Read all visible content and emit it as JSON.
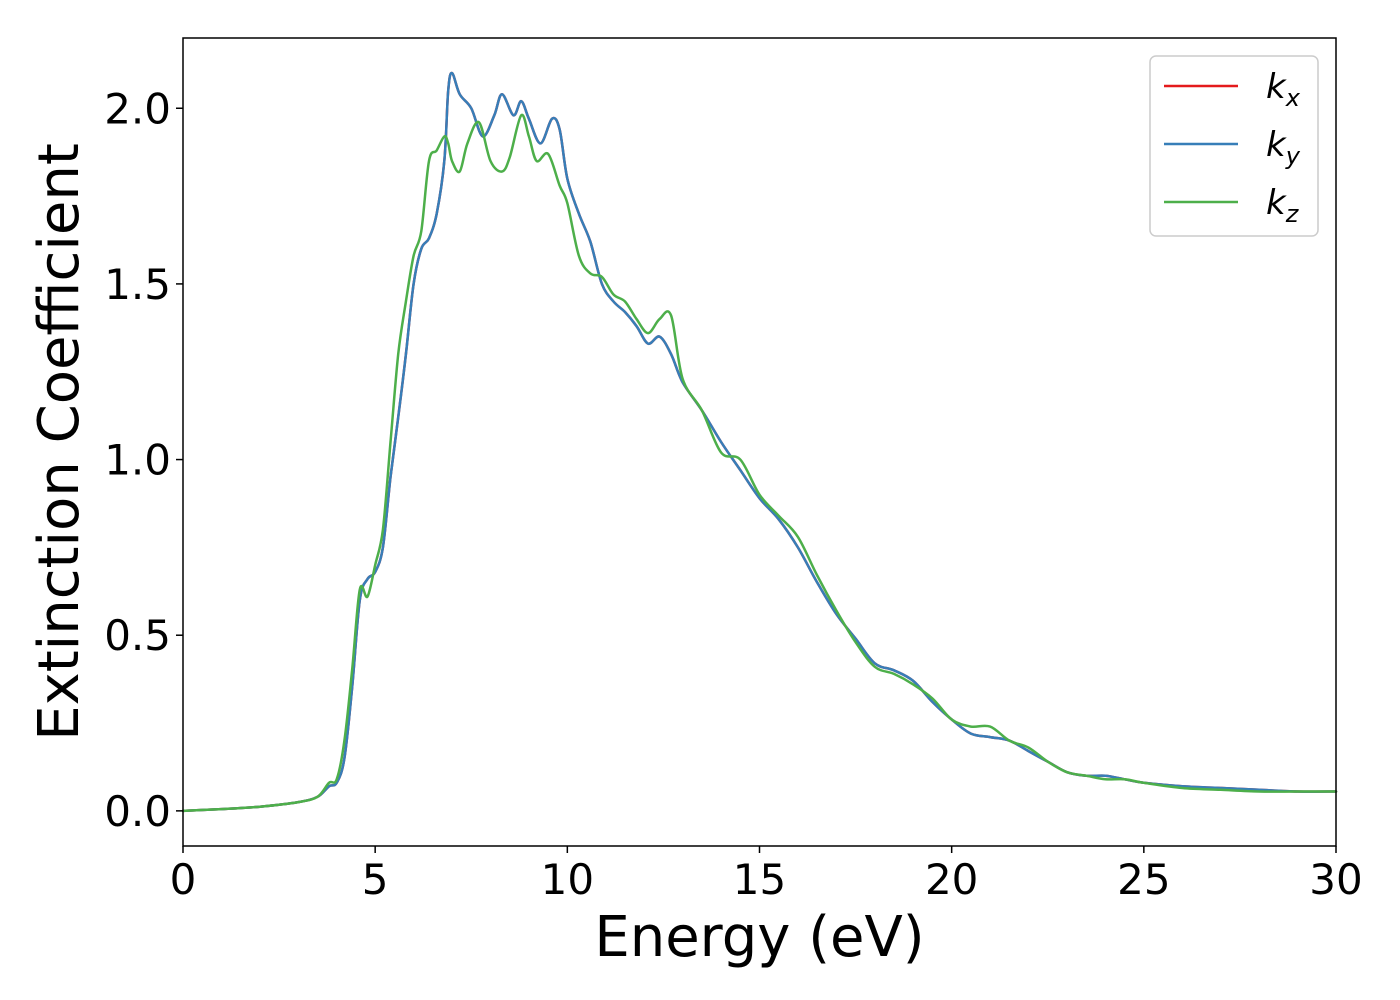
{
  "chart_data": {
    "type": "line",
    "title": "",
    "xlabel": "Energy (eV)",
    "ylabel": "Extinction Coefficient",
    "xlim": [
      0,
      30
    ],
    "ylim": [
      -0.1,
      2.2
    ],
    "xticks": [
      0,
      5,
      10,
      15,
      20,
      25,
      30
    ],
    "xtick_labels": [
      "0",
      "5",
      "10",
      "15",
      "20",
      "25",
      "30"
    ],
    "yticks": [
      0.0,
      0.5,
      1.0,
      1.5,
      2.0
    ],
    "ytick_labels": [
      "0.0",
      "0.5",
      "1.0",
      "1.5",
      "2.0"
    ],
    "grid": false,
    "legend_position": "top-right",
    "series": [
      {
        "name": "k",
        "subscript": "x",
        "color": "#e41a1c",
        "x": [
          0,
          1,
          2,
          3,
          3.5,
          3.8,
          4.0,
          4.2,
          4.4,
          4.6,
          4.8,
          5.0,
          5.2,
          5.4,
          5.6,
          5.8,
          6.0,
          6.2,
          6.4,
          6.6,
          6.8,
          6.9,
          7.0,
          7.2,
          7.5,
          7.8,
          8.1,
          8.3,
          8.6,
          8.8,
          9.0,
          9.3,
          9.6,
          9.8,
          10.0,
          10.3,
          10.6,
          10.9,
          11.2,
          11.5,
          11.8,
          12.1,
          12.4,
          12.7,
          13.0,
          13.5,
          14.0,
          14.5,
          15.0,
          15.5,
          16.0,
          16.5,
          17.0,
          17.5,
          18.0,
          18.5,
          19.0,
          19.5,
          20.0,
          20.5,
          21.0,
          21.5,
          22.0,
          22.5,
          23.0,
          23.5,
          24.0,
          24.5,
          25.0,
          26.0,
          27.0,
          28.0,
          29.0,
          30.0
        ],
        "y": [
          0.0,
          0.005,
          0.012,
          0.025,
          0.04,
          0.07,
          0.08,
          0.15,
          0.35,
          0.6,
          0.66,
          0.68,
          0.75,
          0.95,
          1.12,
          1.3,
          1.5,
          1.6,
          1.63,
          1.7,
          1.85,
          2.05,
          2.1,
          2.04,
          2.0,
          1.92,
          1.98,
          2.04,
          1.98,
          2.02,
          1.97,
          1.9,
          1.97,
          1.94,
          1.8,
          1.7,
          1.62,
          1.5,
          1.45,
          1.42,
          1.38,
          1.33,
          1.35,
          1.3,
          1.22,
          1.14,
          1.05,
          0.97,
          0.89,
          0.83,
          0.75,
          0.65,
          0.56,
          0.49,
          0.42,
          0.4,
          0.37,
          0.31,
          0.26,
          0.22,
          0.21,
          0.2,
          0.17,
          0.14,
          0.11,
          0.1,
          0.1,
          0.09,
          0.08,
          0.07,
          0.065,
          0.06,
          0.055,
          0.055
        ]
      },
      {
        "name": "k",
        "subscript": "y",
        "color": "#377eb8",
        "x": [
          0,
          1,
          2,
          3,
          3.5,
          3.8,
          4.0,
          4.2,
          4.4,
          4.6,
          4.8,
          5.0,
          5.2,
          5.4,
          5.6,
          5.8,
          6.0,
          6.2,
          6.4,
          6.6,
          6.8,
          6.9,
          7.0,
          7.2,
          7.5,
          7.8,
          8.1,
          8.3,
          8.6,
          8.8,
          9.0,
          9.3,
          9.6,
          9.8,
          10.0,
          10.3,
          10.6,
          10.9,
          11.2,
          11.5,
          11.8,
          12.1,
          12.4,
          12.7,
          13.0,
          13.5,
          14.0,
          14.5,
          15.0,
          15.5,
          16.0,
          16.5,
          17.0,
          17.5,
          18.0,
          18.5,
          19.0,
          19.5,
          20.0,
          20.5,
          21.0,
          21.5,
          22.0,
          22.5,
          23.0,
          23.5,
          24.0,
          24.5,
          25.0,
          26.0,
          27.0,
          28.0,
          29.0,
          30.0
        ],
        "y": [
          0.0,
          0.005,
          0.012,
          0.025,
          0.04,
          0.07,
          0.08,
          0.15,
          0.35,
          0.6,
          0.66,
          0.68,
          0.75,
          0.95,
          1.12,
          1.3,
          1.5,
          1.6,
          1.63,
          1.7,
          1.85,
          2.05,
          2.1,
          2.04,
          2.0,
          1.92,
          1.98,
          2.04,
          1.98,
          2.02,
          1.97,
          1.9,
          1.97,
          1.94,
          1.8,
          1.7,
          1.62,
          1.5,
          1.45,
          1.42,
          1.38,
          1.33,
          1.35,
          1.3,
          1.22,
          1.14,
          1.05,
          0.97,
          0.89,
          0.83,
          0.75,
          0.65,
          0.56,
          0.49,
          0.42,
          0.4,
          0.37,
          0.31,
          0.26,
          0.22,
          0.21,
          0.2,
          0.17,
          0.14,
          0.11,
          0.1,
          0.1,
          0.09,
          0.08,
          0.07,
          0.065,
          0.06,
          0.055,
          0.055
        ]
      },
      {
        "name": "k",
        "subscript": "z",
        "color": "#4daf4a",
        "x": [
          0,
          1,
          2,
          3,
          3.5,
          3.8,
          4.0,
          4.2,
          4.4,
          4.6,
          4.8,
          5.0,
          5.2,
          5.4,
          5.6,
          5.8,
          6.0,
          6.2,
          6.4,
          6.6,
          6.8,
          6.9,
          7.0,
          7.2,
          7.4,
          7.7,
          8.0,
          8.3,
          8.5,
          8.8,
          9.0,
          9.2,
          9.5,
          9.8,
          10.0,
          10.3,
          10.6,
          10.9,
          11.2,
          11.5,
          11.8,
          12.1,
          12.4,
          12.7,
          13.0,
          13.5,
          14.0,
          14.5,
          15.0,
          15.5,
          16.0,
          16.5,
          17.0,
          17.5,
          18.0,
          18.5,
          19.0,
          19.5,
          20.0,
          20.5,
          21.0,
          21.5,
          22.0,
          22.5,
          23.0,
          23.5,
          24.0,
          24.5,
          25.0,
          26.0,
          27.0,
          28.0,
          29.0,
          30.0
        ],
        "y": [
          0.0,
          0.005,
          0.012,
          0.025,
          0.04,
          0.08,
          0.09,
          0.2,
          0.4,
          0.63,
          0.61,
          0.7,
          0.8,
          1.05,
          1.3,
          1.45,
          1.58,
          1.65,
          1.85,
          1.88,
          1.92,
          1.9,
          1.85,
          1.82,
          1.9,
          1.96,
          1.85,
          1.82,
          1.86,
          1.98,
          1.92,
          1.85,
          1.87,
          1.78,
          1.73,
          1.58,
          1.53,
          1.52,
          1.47,
          1.45,
          1.4,
          1.36,
          1.4,
          1.41,
          1.23,
          1.14,
          1.02,
          1.0,
          0.9,
          0.84,
          0.78,
          0.67,
          0.57,
          0.48,
          0.41,
          0.39,
          0.36,
          0.32,
          0.26,
          0.24,
          0.24,
          0.2,
          0.18,
          0.14,
          0.11,
          0.1,
          0.09,
          0.09,
          0.08,
          0.065,
          0.06,
          0.055,
          0.055,
          0.055
        ]
      }
    ]
  }
}
